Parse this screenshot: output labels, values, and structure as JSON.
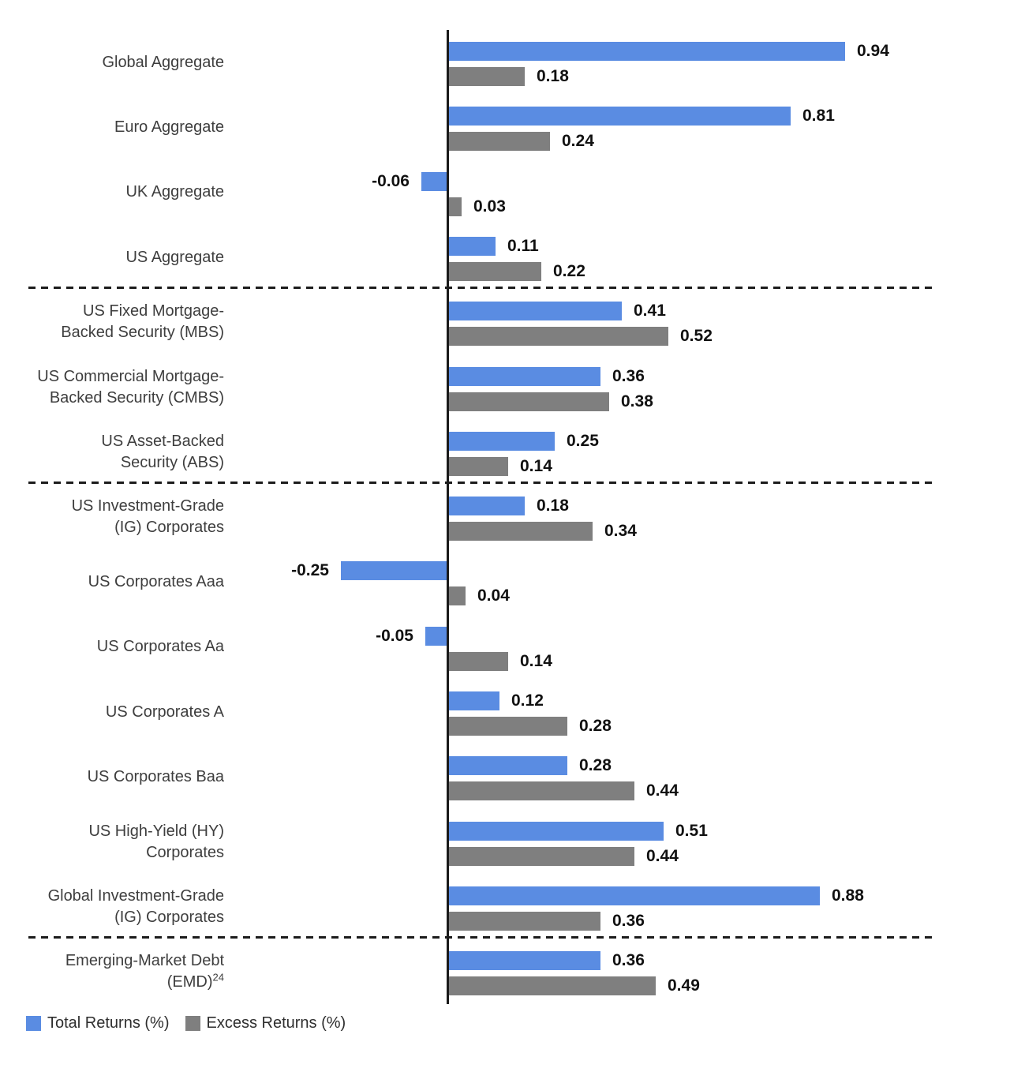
{
  "legend": {
    "items": [
      {
        "key": "total-returns",
        "label": "Total Returns (%)"
      },
      {
        "key": "excess-returns",
        "label": "Excess Returns (%)"
      }
    ]
  },
  "chart_data": {
    "type": "bar",
    "orientation": "horizontal",
    "value_unit": "%",
    "title": "",
    "xlabel": "",
    "ylabel": "",
    "grid": false,
    "legend_position": "bottom-left",
    "xlim": [
      -0.3,
      1.1
    ],
    "value_labels": "two-decimal",
    "categories": [
      {
        "lines": [
          "Global Aggregate"
        ]
      },
      {
        "lines": [
          "Euro Aggregate"
        ]
      },
      {
        "lines": [
          "UK Aggregate"
        ]
      },
      {
        "lines": [
          "US Aggregate"
        ]
      },
      {
        "lines": [
          "US Fixed Mortgage-",
          "Backed Security (MBS)"
        ]
      },
      {
        "lines": [
          "US Commercial Mortgage-",
          "Backed Security (CMBS)"
        ]
      },
      {
        "lines": [
          "US Asset-Backed",
          "Security (ABS)"
        ]
      },
      {
        "lines": [
          "US Investment-Grade",
          "(IG) Corporates"
        ]
      },
      {
        "lines": [
          "US Corporates Aaa"
        ]
      },
      {
        "lines": [
          "US Corporates Aa"
        ]
      },
      {
        "lines": [
          "US Corporates A"
        ]
      },
      {
        "lines": [
          "US Corporates Baa"
        ]
      },
      {
        "lines": [
          "US High-Yield (HY)",
          "Corporates"
        ]
      },
      {
        "lines": [
          "Global Investment-Grade",
          "(IG) Corporates"
        ]
      },
      {
        "lines": [
          "Emerging-Market Debt",
          "(EMD)"
        ],
        "superscript": "24"
      }
    ],
    "series": [
      {
        "name": "Total Returns (%)",
        "key": "total-returns",
        "color": "#5A8CE2",
        "values": [
          0.94,
          0.81,
          -0.06,
          0.11,
          0.41,
          0.36,
          0.25,
          0.18,
          -0.25,
          -0.05,
          0.12,
          0.28,
          0.51,
          0.88,
          0.36
        ]
      },
      {
        "name": "Excess Returns (%)",
        "key": "excess-returns",
        "color": "#7F7F7F",
        "values": [
          0.18,
          0.24,
          0.03,
          0.22,
          0.52,
          0.38,
          0.14,
          0.34,
          0.04,
          0.14,
          0.28,
          0.44,
          0.44,
          0.36,
          0.49
        ]
      }
    ],
    "separators_after_category_index": [
      3,
      6,
      13
    ]
  }
}
